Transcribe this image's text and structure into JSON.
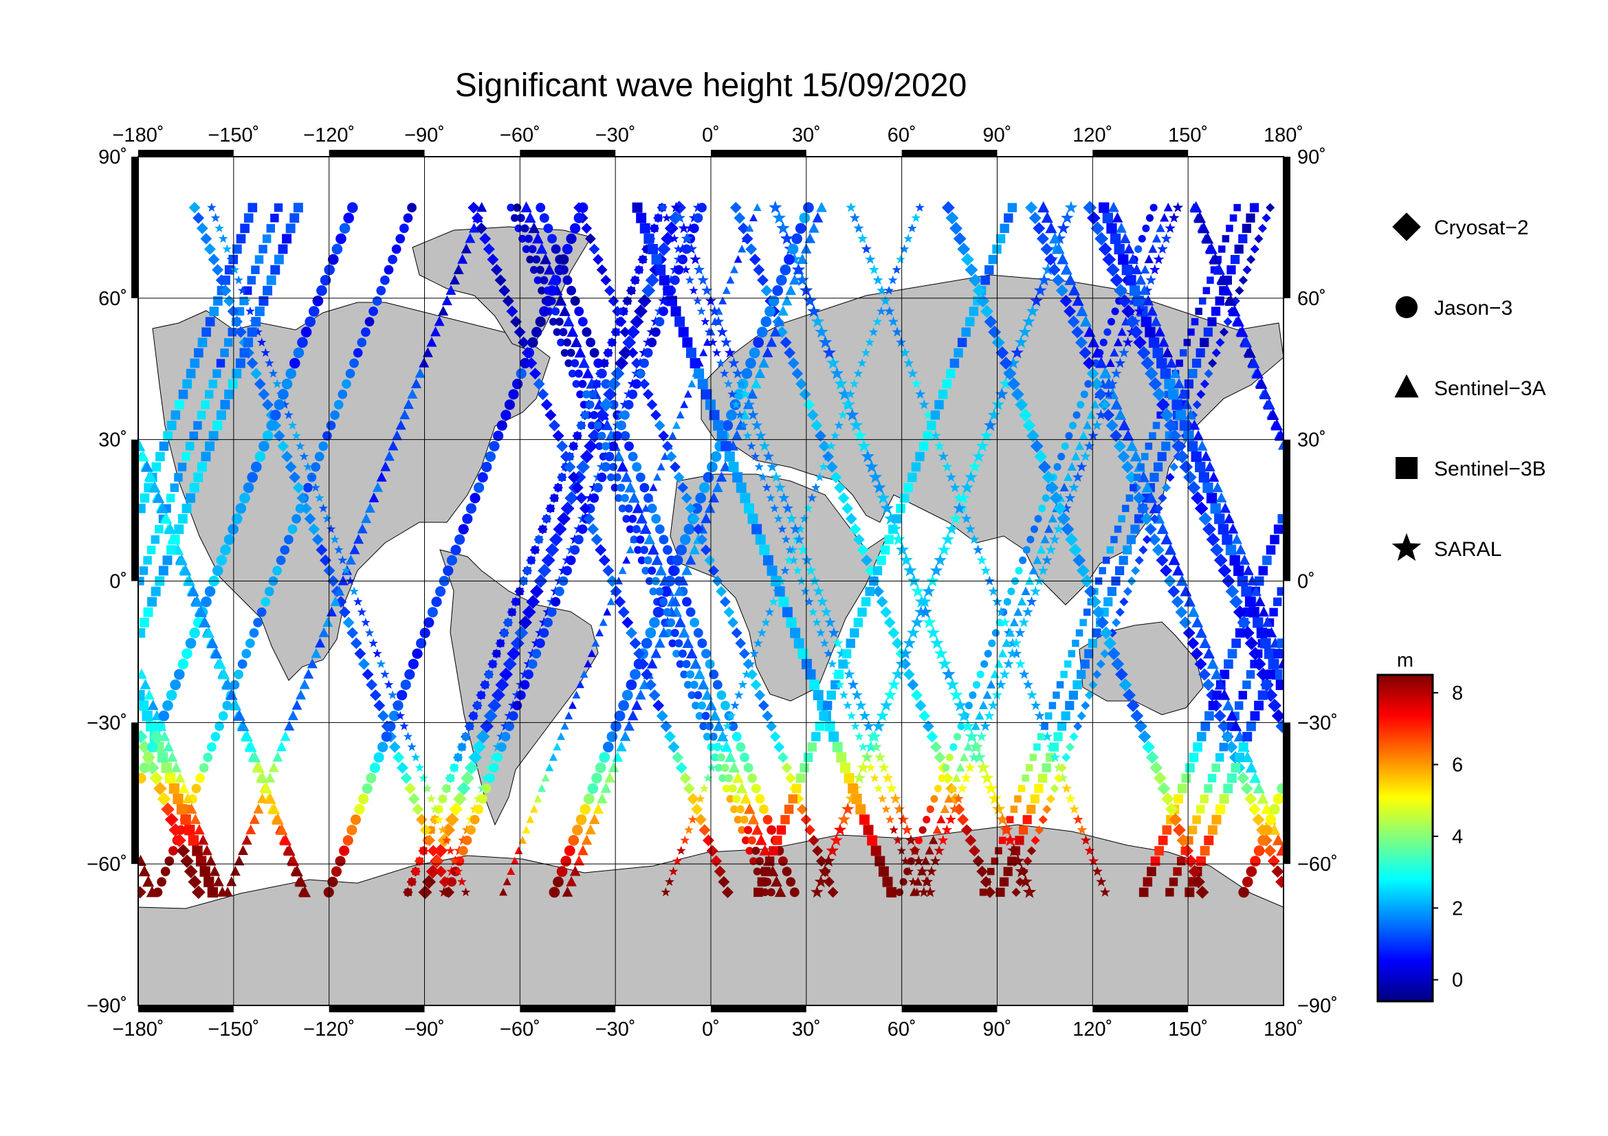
{
  "title": "Significant wave height 15/09/2020",
  "colorbar": {
    "unit": "m",
    "ticks": [
      0,
      2,
      4,
      6,
      8
    ],
    "min": -0.6,
    "max": 8.5,
    "colormap": [
      "#000080",
      "#0000ff",
      "#0080ff",
      "#00ffff",
      "#80ff80",
      "#ffff00",
      "#ff8000",
      "#ff0000",
      "#800000"
    ]
  },
  "axes": {
    "lon_ticks": [
      -180,
      -150,
      -120,
      -90,
      -60,
      -30,
      0,
      30,
      60,
      90,
      120,
      150,
      180
    ],
    "lat_ticks": [
      90,
      60,
      30,
      0,
      -30,
      -60,
      -90
    ],
    "lon_labels": [
      "−180˚",
      "−150˚",
      "−120˚",
      "−90˚",
      "−60˚",
      "−30˚",
      "0˚",
      "30˚",
      "60˚",
      "90˚",
      "120˚",
      "150˚",
      "180˚"
    ],
    "lat_labels": [
      "90˚",
      "60˚",
      "30˚",
      "0˚",
      "−30˚",
      "−60˚",
      "−90˚"
    ],
    "lon_range": [
      -180,
      180
    ],
    "lat_range": [
      -90,
      90
    ]
  },
  "legend": [
    {
      "label": "Cryosat−2",
      "marker": "diamond"
    },
    {
      "label": "Jason−3",
      "marker": "circle"
    },
    {
      "label": "Sentinel−3A",
      "marker": "triangle"
    },
    {
      "label": "Sentinel−3B",
      "marker": "square"
    },
    {
      "label": "SARAL",
      "marker": "star"
    }
  ],
  "colors": {
    "land": "#c0c0c0",
    "ocean": "#ffffff",
    "frame": "#000000"
  }
}
